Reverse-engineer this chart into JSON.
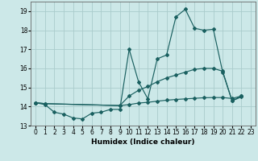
{
  "xlabel": "Humidex (Indice chaleur)",
  "xlim": [
    -0.5,
    23.5
  ],
  "ylim": [
    13.0,
    19.5
  ],
  "yticks": [
    13,
    14,
    15,
    16,
    17,
    18,
    19
  ],
  "xticks": [
    0,
    1,
    2,
    3,
    4,
    5,
    6,
    7,
    8,
    9,
    10,
    11,
    12,
    13,
    14,
    15,
    16,
    17,
    18,
    19,
    20,
    21,
    22,
    23
  ],
  "bg_color": "#cce8e8",
  "grid_color": "#aacccc",
  "line_color": "#1a6060",
  "line1_x": [
    0,
    1,
    2,
    3,
    4,
    5,
    6,
    7,
    8,
    9,
    10,
    11,
    12,
    13,
    14,
    15,
    16,
    17,
    18,
    19,
    20,
    21,
    22
  ],
  "line1_y": [
    14.2,
    14.1,
    13.7,
    13.6,
    13.4,
    13.35,
    13.65,
    13.7,
    13.85,
    13.85,
    17.0,
    15.3,
    14.4,
    16.5,
    16.7,
    18.7,
    19.1,
    18.1,
    18.0,
    18.05,
    15.8,
    14.3,
    14.5
  ],
  "line2_x": [
    0,
    1,
    9,
    10,
    11,
    12,
    13,
    14,
    15,
    16,
    17,
    18,
    19,
    20,
    21,
    22
  ],
  "line2_y": [
    14.2,
    14.15,
    14.05,
    14.55,
    14.85,
    15.05,
    15.3,
    15.5,
    15.65,
    15.8,
    15.95,
    16.0,
    16.0,
    15.85,
    14.3,
    14.55
  ],
  "line3_x": [
    0,
    1,
    9,
    10,
    11,
    12,
    13,
    14,
    15,
    16,
    17,
    18,
    19,
    20,
    21,
    22
  ],
  "line3_y": [
    14.2,
    14.15,
    14.05,
    14.1,
    14.18,
    14.22,
    14.28,
    14.33,
    14.37,
    14.4,
    14.43,
    14.46,
    14.47,
    14.47,
    14.42,
    14.55
  ]
}
